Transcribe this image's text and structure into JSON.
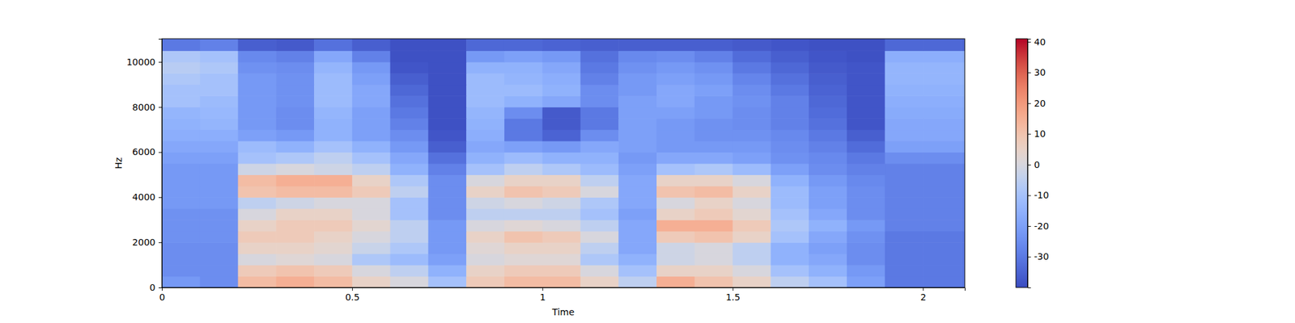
{
  "chart_data": {
    "type": "heatmap",
    "x_label": "Time",
    "y_label": "Hz",
    "x": [
      0,
      0.1,
      0.2,
      0.3,
      0.4,
      0.5,
      0.6,
      0.7,
      0.8,
      0.9,
      1.0,
      1.1,
      1.2,
      1.3,
      1.4,
      1.5,
      1.6,
      1.7,
      1.8,
      1.9,
      2.0,
      2.1,
      2.11
    ],
    "y": [
      0,
      500,
      1000,
      1500,
      2000,
      2500,
      3000,
      3500,
      4000,
      4500,
      5000,
      5500,
      6000,
      6500,
      7000,
      7500,
      8000,
      8500,
      9000,
      9500,
      10000,
      10500,
      11025
    ],
    "xlim": [
      0,
      2.11
    ],
    "xticks": [
      0,
      0.5,
      1,
      1.5,
      2
    ],
    "ylim": [
      0,
      11025
    ],
    "yticks": [
      0,
      2000,
      4000,
      6000,
      8000,
      10000
    ],
    "values": [
      [
        -22,
        -25,
        12,
        15,
        12,
        5,
        0,
        -10,
        8,
        12,
        12,
        5,
        -5,
        15,
        10,
        5,
        -5,
        -10,
        -20,
        -30,
        -30,
        -30
      ],
      [
        -25,
        -25,
        8,
        10,
        8,
        0,
        -5,
        -15,
        5,
        8,
        8,
        0,
        -10,
        5,
        5,
        0,
        -10,
        -15,
        -22,
        -30,
        -30,
        -30
      ],
      [
        -25,
        -25,
        0,
        2,
        0,
        -8,
        -12,
        -20,
        0,
        2,
        2,
        -8,
        -15,
        -2,
        0,
        -5,
        -15,
        -18,
        -25,
        -30,
        -30,
        -30
      ],
      [
        -25,
        -25,
        5,
        5,
        3,
        -3,
        -8,
        -22,
        2,
        5,
        5,
        -5,
        -18,
        -2,
        0,
        -5,
        -15,
        -20,
        -25,
        -30,
        -30,
        -30
      ],
      [
        -24,
        -24,
        8,
        8,
        5,
        0,
        -5,
        -22,
        5,
        10,
        8,
        0,
        -18,
        8,
        10,
        5,
        -10,
        -18,
        -24,
        -30,
        -30,
        -30
      ],
      [
        -24,
        -24,
        5,
        8,
        8,
        3,
        -5,
        -22,
        0,
        2,
        0,
        -5,
        -18,
        15,
        15,
        8,
        -8,
        -15,
        -22,
        -28,
        -28,
        -28
      ],
      [
        -24,
        -24,
        0,
        5,
        5,
        0,
        -10,
        -25,
        -5,
        -5,
        -5,
        -10,
        -20,
        5,
        8,
        3,
        -10,
        -18,
        -25,
        -28,
        -28,
        -28
      ],
      [
        -22,
        -22,
        -5,
        -2,
        0,
        0,
        -10,
        -25,
        -2,
        0,
        -2,
        -8,
        -18,
        0,
        5,
        0,
        -12,
        -20,
        -25,
        -28,
        -28,
        -28
      ],
      [
        -22,
        -22,
        10,
        12,
        12,
        8,
        -5,
        -25,
        5,
        10,
        8,
        0,
        -18,
        10,
        12,
        5,
        -12,
        -20,
        -25,
        -28,
        -28,
        -28
      ],
      [
        -22,
        -22,
        12,
        15,
        15,
        5,
        -8,
        -25,
        0,
        5,
        5,
        -5,
        -18,
        5,
        5,
        0,
        -15,
        -22,
        -26,
        -28,
        -28,
        -28
      ],
      [
        -22,
        -22,
        -2,
        0,
        -2,
        -5,
        -15,
        -28,
        -10,
        -5,
        -8,
        -12,
        -20,
        -10,
        -8,
        -12,
        -20,
        -25,
        -28,
        -28,
        -28,
        -28
      ],
      [
        -20,
        -20,
        -10,
        -8,
        -5,
        -10,
        -18,
        -32,
        -15,
        -12,
        -15,
        -15,
        -22,
        -18,
        -18,
        -20,
        -24,
        -26,
        -30,
        -25,
        -25,
        -25
      ],
      [
        -18,
        -18,
        -12,
        -15,
        -10,
        -15,
        -22,
        -36,
        -18,
        -20,
        -22,
        -18,
        -20,
        -22,
        -22,
        -22,
        -25,
        -28,
        -33,
        -20,
        -20,
        -20
      ],
      [
        -16,
        -16,
        -20,
        -22,
        -15,
        -20,
        -25,
        -38,
        -16,
        -30,
        -35,
        -25,
        -20,
        -22,
        -24,
        -24,
        -26,
        -30,
        -36,
        -18,
        -18,
        -18
      ],
      [
        -15,
        -14,
        -22,
        -25,
        -15,
        -20,
        -28,
        -39,
        -15,
        -30,
        -37,
        -30,
        -20,
        -22,
        -24,
        -25,
        -28,
        -32,
        -38,
        -18,
        -18,
        -18
      ],
      [
        -14,
        -13,
        -22,
        -25,
        -14,
        -20,
        -30,
        -39,
        -14,
        -25,
        -37,
        -30,
        -20,
        -20,
        -22,
        -25,
        -28,
        -33,
        -38,
        -17,
        -17,
        -17
      ],
      [
        -10,
        -12,
        -22,
        -24,
        -12,
        -18,
        -32,
        -39,
        -12,
        -15,
        -18,
        -25,
        -20,
        -18,
        -22,
        -24,
        -28,
        -34,
        -38,
        -16,
        -16,
        -16
      ],
      [
        -10,
        -10,
        -22,
        -24,
        -12,
        -18,
        -34,
        -39,
        -12,
        -12,
        -15,
        -25,
        -22,
        -18,
        -20,
        -25,
        -30,
        -35,
        -38,
        -15,
        -15,
        -15
      ],
      [
        -8,
        -10,
        -22,
        -24,
        -12,
        -20,
        -36,
        -39,
        -12,
        -14,
        -16,
        -28,
        -22,
        -20,
        -22,
        -27,
        -32,
        -36,
        -38,
        -14,
        -14,
        -14
      ],
      [
        -6,
        -8,
        -24,
        -25,
        -14,
        -22,
        -38,
        -39,
        -15,
        -15,
        -18,
        -30,
        -24,
        -22,
        -24,
        -30,
        -34,
        -37,
        -38,
        -14,
        -14,
        -14
      ],
      [
        -8,
        -10,
        -26,
        -28,
        -18,
        -28,
        -39,
        -39,
        -22,
        -20,
        -22,
        -32,
        -26,
        -25,
        -28,
        -33,
        -36,
        -38,
        -39,
        -16,
        -16,
        -16
      ],
      [
        -30,
        -28,
        -36,
        -37,
        -32,
        -36,
        -39,
        -39,
        -34,
        -34,
        -35,
        -36,
        -36,
        -36,
        -36,
        -37,
        -38,
        -39,
        -39,
        -34,
        -34,
        -34
      ]
    ],
    "colorbar": {
      "range": [
        -40,
        41
      ],
      "ticks": [
        -30,
        -20,
        -10,
        0,
        10,
        20,
        30,
        40
      ]
    }
  }
}
